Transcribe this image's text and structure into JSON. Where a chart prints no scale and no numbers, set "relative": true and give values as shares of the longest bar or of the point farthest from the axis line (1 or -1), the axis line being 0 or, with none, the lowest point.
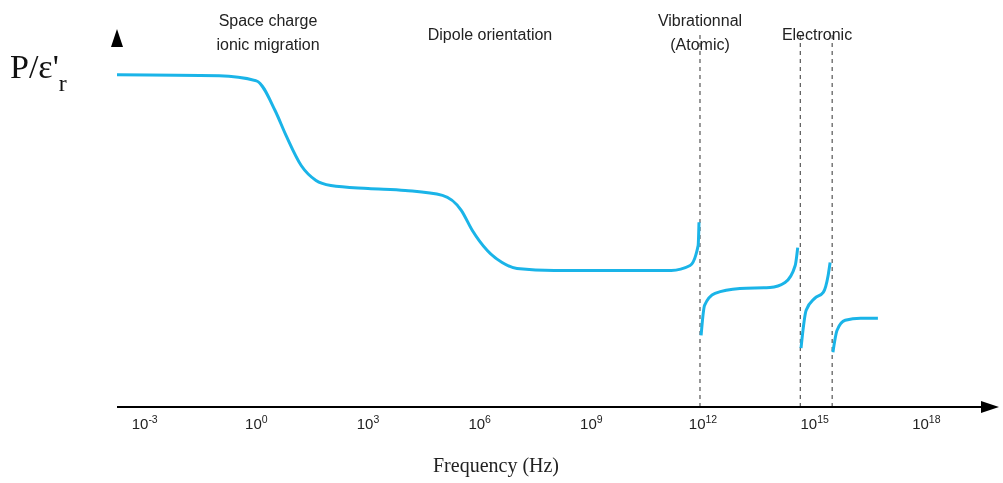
{
  "chart_data": {
    "type": "line",
    "relative": true,
    "log": "x",
    "xlabel": "Frequency (Hz)",
    "ylabel": "P/ε'$_{r}$",
    "xlim": [
      0.00018,
      7e+19
    ],
    "xticks": [
      {
        "value": 0.001,
        "label": "10$^{-3}$"
      },
      {
        "value": 1,
        "label": "10$^{0}$"
      },
      {
        "value": 1000,
        "label": "10$^{3}$"
      },
      {
        "value": 1000000.0,
        "label": "10$^{6}$"
      },
      {
        "value": 1000000000.0,
        "label": "10$^{9}$"
      },
      {
        "value": 1000000000000.0,
        "label": "10$^{12}$"
      },
      {
        "value": 1000000000000000.0,
        "label": "10$^{15}$"
      },
      {
        "value": 1e+18,
        "label": "10$^{18}$"
      }
    ],
    "marker": "none",
    "line_style": "solid",
    "series": [
      {
        "color": "#1ab4e8",
        "x": [
          0.00018,
          0.1,
          1,
          3.2,
          6.3,
          16,
          40,
          100,
          1000,
          10000.0,
          100000.0,
          320000.0,
          630000.0,
          1600000.0,
          4000000.0,
          10000000.0,
          100000000.0,
          140000000000.0,
          450000000000.0,
          740000000000.0,
          780000000000.0,
          830000000000.0,
          890000000000.0,
          1100000000000.0,
          2100000000000.0,
          9800000000000.0,
          63000000000000.0,
          160000000000000.0,
          300000000000000.0,
          350000000000000.0,
          410000000000000.0,
          430000000000000.0,
          590000000000000.0,
          1000000000000000.0,
          1700000000000000.0,
          2300000000000000.0,
          2600000000000000.0,
          2950000000000000.0,
          3100000000000000.0,
          4000000000000000.0,
          6600000000000000.0,
          1.7e+16,
          5e+16
        ],
        "values": [
          1.0,
          0.997,
          0.982,
          0.892,
          0.817,
          0.727,
          0.682,
          0.667,
          0.658,
          0.652,
          0.637,
          0.592,
          0.532,
          0.471,
          0.435,
          0.417,
          0.411,
          0.411,
          0.426,
          0.486,
          0.556,
          null,
          0.216,
          0.306,
          0.342,
          0.357,
          0.36,
          0.375,
          0.426,
          0.48,
          null,
          0.177,
          0.291,
          0.327,
          0.345,
          0.396,
          0.435,
          null,
          0.165,
          0.231,
          0.261,
          0.267,
          0.267
        ]
      }
    ],
    "ref_lines": [
      {
        "axis": "x",
        "value": 830000000000.0,
        "line_style": "dashed",
        "color": "#333333"
      },
      {
        "axis": "x",
        "value": 410000000000000.0,
        "line_style": "dashed",
        "color": "#333333"
      },
      {
        "axis": "x",
        "value": 2950000000000000.0,
        "line_style": "dashed",
        "color": "#333333"
      }
    ],
    "annotations": [
      "Space charge\nionic migration",
      "Dipole orientation",
      "Vibrationnal\n(Atomic)",
      "Electronic"
    ]
  }
}
